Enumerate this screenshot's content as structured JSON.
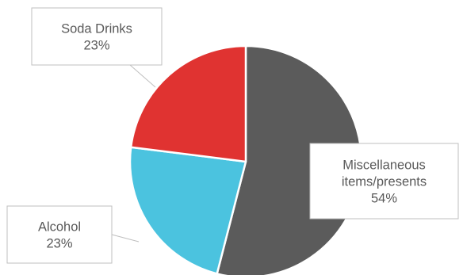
{
  "chart_data": {
    "type": "pie",
    "slices": [
      {
        "label": "Miscellaneous items/presents",
        "label_lines": [
          "Miscellaneous",
          "items/presents"
        ],
        "value": 54,
        "value_label": "54%",
        "color": "#5b5b5b"
      },
      {
        "label": "Alcohol",
        "label_lines": [
          "Alcohol"
        ],
        "value": 23,
        "value_label": "23%",
        "color": "#4bc3df"
      },
      {
        "label": "Soda Drinks",
        "label_lines": [
          "Soda Drinks"
        ],
        "value": 23,
        "value_label": "23%",
        "color": "#e03331"
      }
    ],
    "slice_border_color": "#ffffff",
    "callout_border_color": "#bfbfbf",
    "legend": "none",
    "start_angle_deg": 0,
    "direction": "clockwise"
  }
}
